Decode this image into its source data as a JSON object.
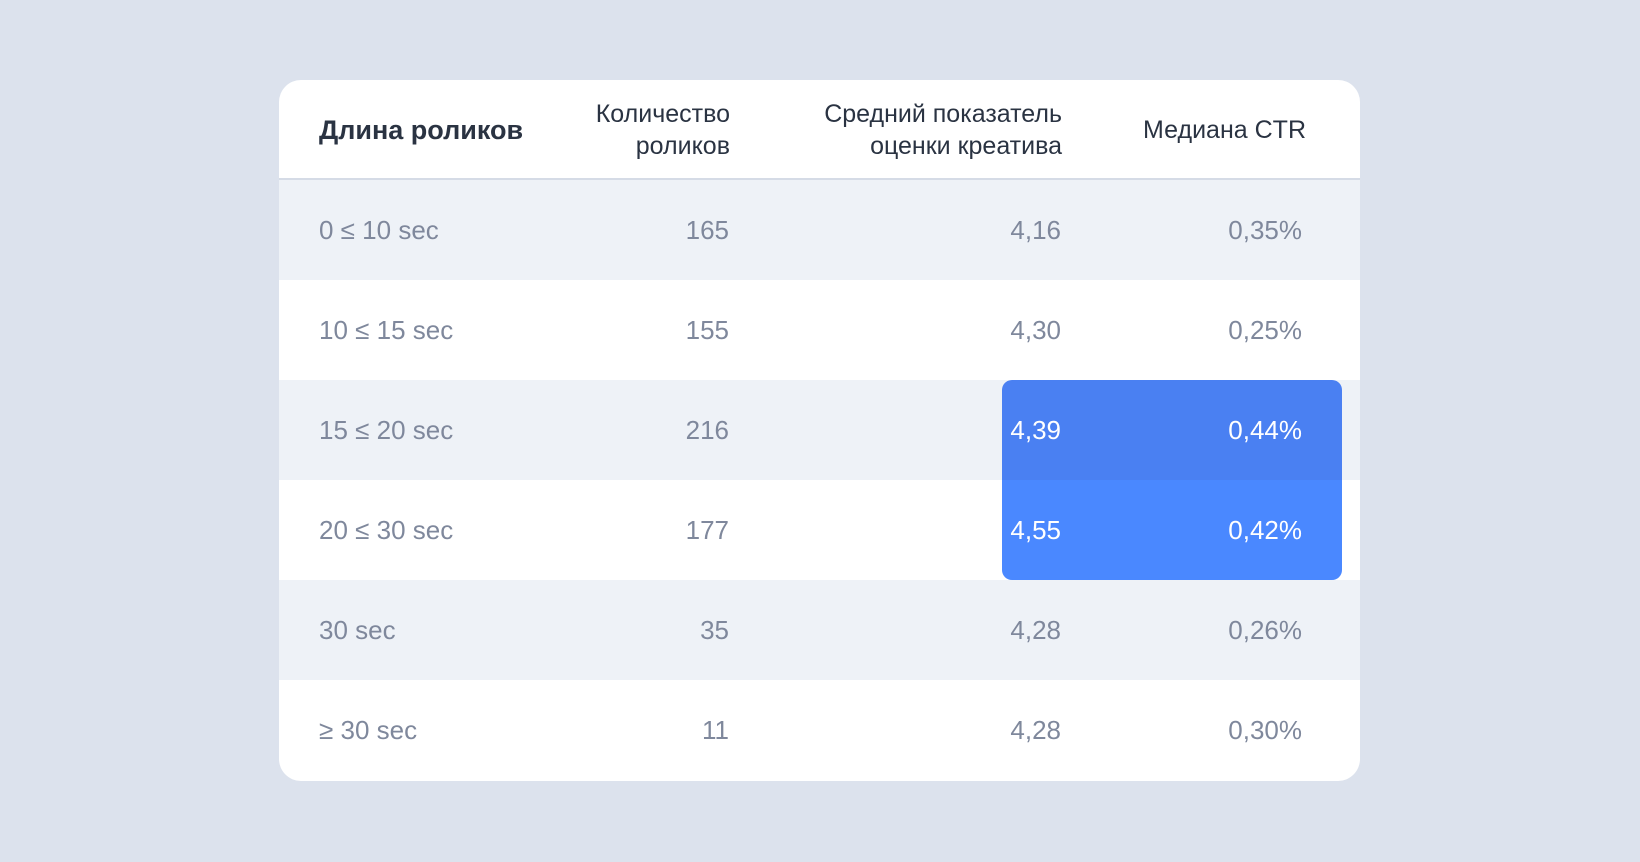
{
  "chart_data": {
    "type": "table",
    "columns": [
      "Длина роликов",
      "Количество роликов",
      "Средний показатель оценки креатива",
      "Медиана CTR"
    ],
    "header": {
      "col0": "Длина роликов",
      "col1_line1": "Количество",
      "col1_line2": "роликов",
      "col2_line1": "Средний показатель",
      "col2_line2": "оценки креатива",
      "col3": "Медиана CTR"
    },
    "rows": [
      {
        "length": "0 ≤ 10 sec",
        "count": "165",
        "score": "4,16",
        "ctr": "0,35%"
      },
      {
        "length": "10 ≤ 15 sec",
        "count": "155",
        "score": "4,30",
        "ctr": "0,25%"
      },
      {
        "length": "15 ≤ 20 sec",
        "count": "216",
        "score": "4,39",
        "ctr": "0,44%"
      },
      {
        "length": "20 ≤ 30 sec",
        "count": "177",
        "score": "4,55",
        "ctr": "0,42%"
      },
      {
        "length": "30 sec",
        "count": "35",
        "score": "4,28",
        "ctr": "0,26%"
      },
      {
        "length": "≥ 30 sec",
        "count": "11",
        "score": "4,28",
        "ctr": "0,30%"
      }
    ],
    "highlighted_rows": [
      2,
      3
    ],
    "highlighted_columns": [
      "score",
      "ctr"
    ],
    "colors": {
      "background": "#dce2ed",
      "highlight_top": "#4a80f2",
      "highlight_bottom": "#4a88ff",
      "alt_row": "#eef2f7"
    }
  }
}
